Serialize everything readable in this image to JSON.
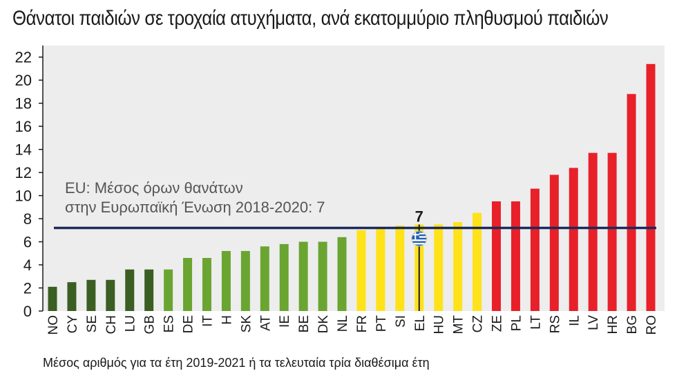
{
  "chart_data": {
    "type": "bar",
    "title": "Θάνατοι παιδιών σε τροχαία ατυχήματα, ανά εκατομμύριο πληθυσμού παιδιών",
    "footnote": "Μέσος αριθμός για τα έτη 2019-2021 ή τα τελευταία τρία διαθέσιμα έτη",
    "categories": [
      "NO",
      "CY",
      "SE",
      "CH",
      "LU",
      "GB",
      "ES",
      "DE",
      "IT",
      "H",
      "SK",
      "AT",
      "IE",
      "BE",
      "DK",
      "NL",
      "FR",
      "PT",
      "SI",
      "EL",
      "HU",
      "MT",
      "CZ",
      "ZE",
      "PL",
      "LT",
      "RS",
      "IL",
      "LV",
      "HR",
      "BG",
      "RO"
    ],
    "values": [
      2.1,
      2.5,
      2.7,
      2.7,
      3.6,
      3.6,
      3.6,
      4.6,
      4.6,
      5.2,
      5.2,
      5.6,
      5.8,
      6.0,
      6.0,
      6.4,
      7.0,
      7.3,
      7.4,
      7.5,
      7.5,
      7.7,
      8.5,
      9.5,
      9.5,
      10.6,
      11.8,
      12.4,
      13.7,
      13.7,
      18.8,
      21.4
    ],
    "colors": [
      "#3b5e22",
      "#3b5e22",
      "#3b5e22",
      "#3b5e22",
      "#3b5e22",
      "#3b5e22",
      "#6aa531",
      "#6aa531",
      "#6aa531",
      "#6aa531",
      "#6aa531",
      "#6aa531",
      "#6aa531",
      "#6aa531",
      "#6aa531",
      "#6aa531",
      "#ffe21a",
      "#ffe21a",
      "#ffe21a",
      "#ffe21a",
      "#ffe21a",
      "#ffe21a",
      "#ffe21a",
      "#e8202a",
      "#e8202a",
      "#e8202a",
      "#e8202a",
      "#e8202a",
      "#e8202a",
      "#e8202a",
      "#e8202a",
      "#e8202a"
    ],
    "ylim": [
      0,
      23
    ],
    "yticks": [
      0,
      2,
      4,
      6,
      8,
      10,
      12,
      14,
      16,
      18,
      20,
      22
    ],
    "reference_line": {
      "value": 7.2,
      "color": "#1b2a5c",
      "label_line1": "EU: Μέσος όρων θανάτων",
      "label_line2": "στην Ευρωπαϊκή Ένωση 2018-2020: 7"
    },
    "highlight": {
      "category": "EL",
      "label": "7",
      "flag": "greek-flag",
      "marker_color": "#1a1a1a"
    },
    "grid": false,
    "background_color": "#ededed"
  }
}
